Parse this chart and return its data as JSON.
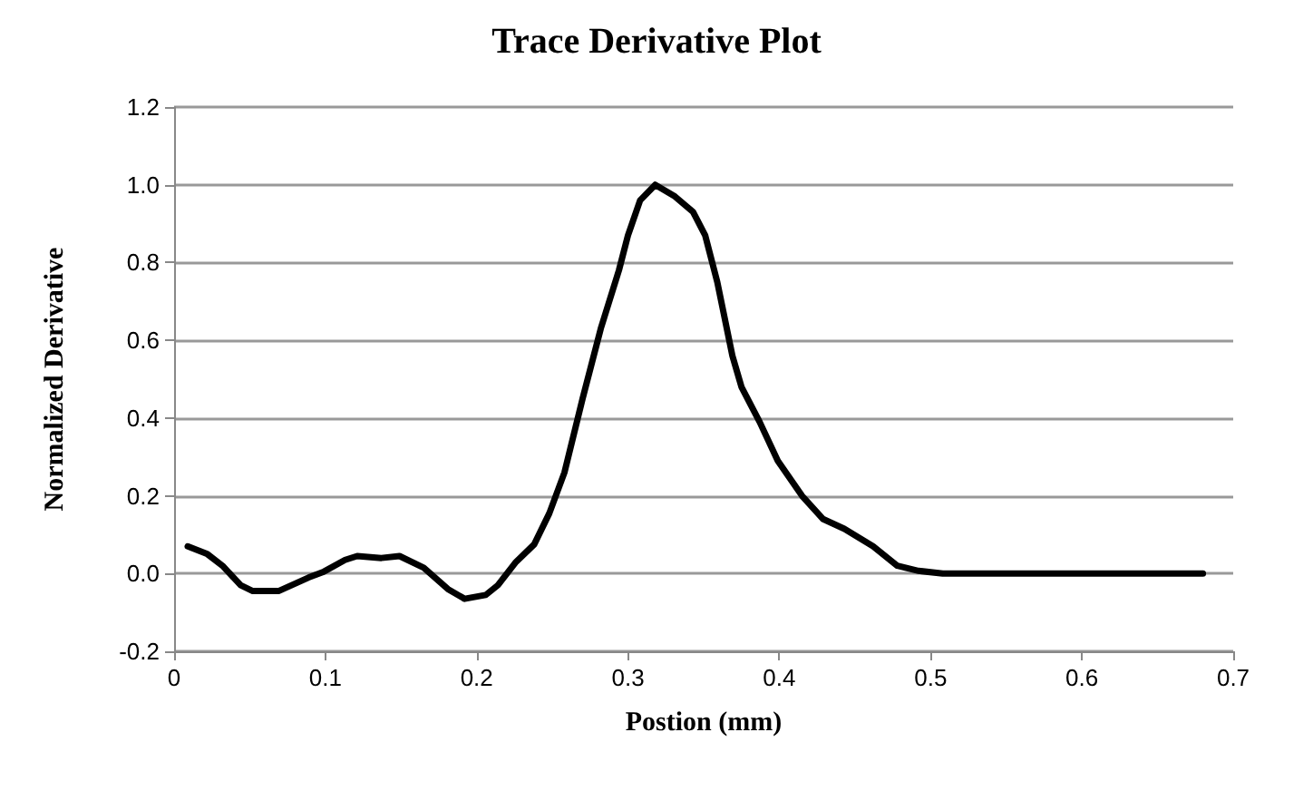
{
  "chart_data": {
    "type": "line",
    "title": "Trace Derivative Plot",
    "xlabel": "Postion (mm)",
    "ylabel": "Normalized Derivative",
    "xlim": [
      0,
      0.7
    ],
    "xticks": [
      0,
      0.1,
      0.2,
      0.3,
      0.4,
      0.5,
      0.6,
      0.7
    ],
    "ylim": [
      -0.2,
      1.2
    ],
    "yticks": [
      {
        "value": -0.2,
        "label": "-0.2"
      },
      {
        "value": 0,
        "label": "0.0"
      },
      {
        "value": 0.2,
        "label": "0.2"
      },
      {
        "value": 0.4,
        "label": "0.4"
      },
      {
        "value": 0.6,
        "label": "0.6"
      },
      {
        "value": 0.8,
        "label": "0.8"
      },
      {
        "value": 1,
        "label": "1.0"
      },
      {
        "value": 1.2,
        "label": "1.2"
      }
    ],
    "grid": "y",
    "marker": "none",
    "line_style": "solid",
    "series": [
      {
        "color": "#000000",
        "x": [
          0.009,
          0.022,
          0.032,
          0.044,
          0.052,
          0.069,
          0.089,
          0.099,
          0.113,
          0.121,
          0.137,
          0.149,
          0.165,
          0.181,
          0.192,
          0.206,
          0.214,
          0.226,
          0.238,
          0.248,
          0.258,
          0.27,
          0.282,
          0.294,
          0.3,
          0.308,
          0.318,
          0.331,
          0.343,
          0.351,
          0.359,
          0.369,
          0.375,
          0.387,
          0.399,
          0.415,
          0.429,
          0.443,
          0.462,
          0.478,
          0.492,
          0.508,
          0.55,
          0.6,
          0.65,
          0.68
        ],
        "values": [
          0.07,
          0.05,
          0.02,
          -0.03,
          -0.045,
          -0.045,
          -0.01,
          0.005,
          0.035,
          0.045,
          0.04,
          0.045,
          0.015,
          -0.04,
          -0.065,
          -0.055,
          -0.03,
          0.03,
          0.075,
          0.155,
          0.26,
          0.45,
          0.63,
          0.78,
          0.87,
          0.96,
          1.0,
          0.97,
          0.93,
          0.87,
          0.75,
          0.56,
          0.48,
          0.39,
          0.29,
          0.2,
          0.14,
          0.115,
          0.07,
          0.02,
          0.007,
          0,
          0,
          0,
          0,
          0
        ]
      }
    ]
  }
}
